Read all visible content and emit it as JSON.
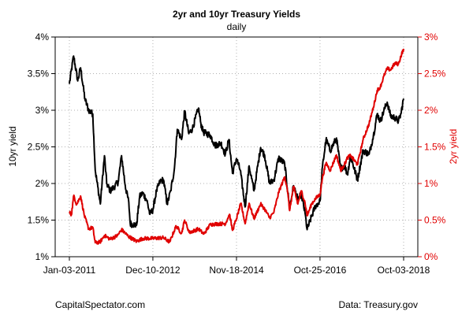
{
  "chart_data": {
    "type": "line",
    "title": "2yr and 10yr Treasury Yields",
    "subtitle": "daily",
    "x_tick_labels": [
      "Jan-03-2011",
      "Dec-10-2012",
      "Nov-18-2014",
      "Oct-25-2016",
      "Oct-03-2018"
    ],
    "x_tick_dates": [
      "2011-01-03",
      "2012-12-10",
      "2014-11-18",
      "2016-10-25",
      "2018-10-03"
    ],
    "xlim": [
      "2011-01-03",
      "2018-10-03"
    ],
    "ylabel_left": "10yr yield",
    "ylabel_right": "2yr yield",
    "ylim_left": [
      1,
      4
    ],
    "ylim_right": [
      0,
      3
    ],
    "y_ticks_left": [
      "1%",
      "1.5%",
      "2%",
      "2.5%",
      "3%",
      "3.5%",
      "4%"
    ],
    "y_ticks_right": [
      "0%",
      "0.5%",
      "1%",
      "1.5%",
      "2%",
      "2.5%",
      "3%"
    ],
    "grid": true,
    "series": [
      {
        "name": "10yr yield",
        "axis": "left",
        "color": "#000000",
        "points": [
          [
            "2011-01-03",
            3.36
          ],
          [
            "2011-02-08",
            3.74
          ],
          [
            "2011-03-15",
            3.4
          ],
          [
            "2011-04-08",
            3.58
          ],
          [
            "2011-05-15",
            3.15
          ],
          [
            "2011-06-15",
            3.0
          ],
          [
            "2011-07-20",
            2.95
          ],
          [
            "2011-08-10",
            2.18
          ],
          [
            "2011-09-22",
            1.72
          ],
          [
            "2011-10-27",
            2.38
          ],
          [
            "2011-11-15",
            2.0
          ],
          [
            "2011-12-15",
            1.9
          ],
          [
            "2012-01-15",
            1.95
          ],
          [
            "2012-02-20",
            2.02
          ],
          [
            "2012-03-20",
            2.38
          ],
          [
            "2012-04-20",
            1.97
          ],
          [
            "2012-05-20",
            1.74
          ],
          [
            "2012-06-01",
            1.45
          ],
          [
            "2012-07-25",
            1.43
          ],
          [
            "2012-08-20",
            1.82
          ],
          [
            "2012-09-15",
            1.87
          ],
          [
            "2012-10-20",
            1.77
          ],
          [
            "2012-11-15",
            1.58
          ],
          [
            "2012-12-10",
            1.64
          ],
          [
            "2013-01-10",
            1.9
          ],
          [
            "2013-02-10",
            2.03
          ],
          [
            "2013-03-10",
            2.05
          ],
          [
            "2013-04-10",
            1.72
          ],
          [
            "2013-05-10",
            1.9
          ],
          [
            "2013-06-10",
            2.2
          ],
          [
            "2013-07-05",
            2.74
          ],
          [
            "2013-08-10",
            2.6
          ],
          [
            "2013-09-05",
            2.99
          ],
          [
            "2013-10-10",
            2.68
          ],
          [
            "2013-11-10",
            2.75
          ],
          [
            "2013-12-31",
            3.03
          ],
          [
            "2014-01-20",
            2.82
          ],
          [
            "2014-02-10",
            2.7
          ],
          [
            "2014-04-10",
            2.66
          ],
          [
            "2014-05-20",
            2.52
          ],
          [
            "2014-07-10",
            2.55
          ],
          [
            "2014-08-15",
            2.4
          ],
          [
            "2014-09-15",
            2.6
          ],
          [
            "2014-10-15",
            2.14
          ],
          [
            "2014-11-18",
            2.34
          ],
          [
            "2014-12-20",
            2.18
          ],
          [
            "2015-01-30",
            1.68
          ],
          [
            "2015-03-05",
            2.24
          ],
          [
            "2015-04-15",
            1.9
          ],
          [
            "2015-06-10",
            2.49
          ],
          [
            "2015-07-15",
            2.38
          ],
          [
            "2015-08-25",
            2.0
          ],
          [
            "2015-10-01",
            2.05
          ],
          [
            "2015-11-10",
            2.35
          ],
          [
            "2015-12-31",
            2.27
          ],
          [
            "2016-02-11",
            1.66
          ],
          [
            "2016-03-15",
            1.97
          ],
          [
            "2016-04-20",
            1.78
          ],
          [
            "2016-05-20",
            1.85
          ],
          [
            "2016-06-20",
            1.6
          ],
          [
            "2016-07-08",
            1.37
          ],
          [
            "2016-08-15",
            1.55
          ],
          [
            "2016-09-15",
            1.69
          ],
          [
            "2016-10-25",
            1.76
          ],
          [
            "2016-11-15",
            2.23
          ],
          [
            "2016-12-15",
            2.6
          ],
          [
            "2017-01-20",
            2.45
          ],
          [
            "2017-03-13",
            2.62
          ],
          [
            "2017-04-18",
            2.2
          ],
          [
            "2017-05-20",
            2.25
          ],
          [
            "2017-06-14",
            2.12
          ],
          [
            "2017-07-10",
            2.38
          ],
          [
            "2017-09-07",
            2.05
          ],
          [
            "2017-10-25",
            2.45
          ],
          [
            "2017-12-15",
            2.4
          ],
          [
            "2018-01-20",
            2.65
          ],
          [
            "2018-02-21",
            2.95
          ],
          [
            "2018-03-20",
            2.85
          ],
          [
            "2018-04-25",
            3.02
          ],
          [
            "2018-05-17",
            3.11
          ],
          [
            "2018-06-15",
            2.92
          ],
          [
            "2018-07-20",
            2.9
          ],
          [
            "2018-08-20",
            2.85
          ],
          [
            "2018-09-10",
            2.95
          ],
          [
            "2018-10-03",
            3.16
          ]
        ]
      },
      {
        "name": "2yr yield",
        "axis": "right",
        "color": "#e00000",
        "points": [
          [
            "2011-01-03",
            0.61
          ],
          [
            "2011-01-20",
            0.57
          ],
          [
            "2011-02-10",
            0.84
          ],
          [
            "2011-03-05",
            0.71
          ],
          [
            "2011-04-08",
            0.83
          ],
          [
            "2011-05-10",
            0.56
          ],
          [
            "2011-06-15",
            0.38
          ],
          [
            "2011-07-20",
            0.4
          ],
          [
            "2011-08-10",
            0.19
          ],
          [
            "2011-09-20",
            0.2
          ],
          [
            "2011-10-27",
            0.29
          ],
          [
            "2011-12-15",
            0.24
          ],
          [
            "2012-02-15",
            0.29
          ],
          [
            "2012-03-20",
            0.37
          ],
          [
            "2012-05-15",
            0.28
          ],
          [
            "2012-07-25",
            0.21
          ],
          [
            "2012-09-15",
            0.25
          ],
          [
            "2012-12-10",
            0.25
          ],
          [
            "2013-03-10",
            0.26
          ],
          [
            "2013-05-01",
            0.2
          ],
          [
            "2013-06-25",
            0.42
          ],
          [
            "2013-08-10",
            0.32
          ],
          [
            "2013-09-05",
            0.5
          ],
          [
            "2013-10-15",
            0.33
          ],
          [
            "2013-12-31",
            0.38
          ],
          [
            "2014-02-15",
            0.31
          ],
          [
            "2014-04-10",
            0.44
          ],
          [
            "2014-06-15",
            0.45
          ],
          [
            "2014-08-15",
            0.45
          ],
          [
            "2014-09-20",
            0.58
          ],
          [
            "2014-10-15",
            0.36
          ],
          [
            "2014-11-18",
            0.52
          ],
          [
            "2014-12-25",
            0.73
          ],
          [
            "2015-01-30",
            0.45
          ],
          [
            "2015-03-05",
            0.73
          ],
          [
            "2015-04-15",
            0.52
          ],
          [
            "2015-06-10",
            0.72
          ],
          [
            "2015-07-15",
            0.65
          ],
          [
            "2015-08-25",
            0.53
          ],
          [
            "2015-10-01",
            0.61
          ],
          [
            "2015-11-10",
            0.88
          ],
          [
            "2015-12-31",
            1.09
          ],
          [
            "2016-01-20",
            0.95
          ],
          [
            "2016-02-11",
            0.63
          ],
          [
            "2016-03-15",
            0.96
          ],
          [
            "2016-04-20",
            0.72
          ],
          [
            "2016-05-20",
            0.9
          ],
          [
            "2016-06-20",
            0.74
          ],
          [
            "2016-07-08",
            0.56
          ],
          [
            "2016-08-15",
            0.72
          ],
          [
            "2016-09-15",
            0.79
          ],
          [
            "2016-10-25",
            0.85
          ],
          [
            "2016-11-15",
            1.08
          ],
          [
            "2016-12-15",
            1.28
          ],
          [
            "2017-01-20",
            1.18
          ],
          [
            "2017-03-13",
            1.39
          ],
          [
            "2017-04-18",
            1.18
          ],
          [
            "2017-05-20",
            1.26
          ],
          [
            "2017-06-14",
            1.35
          ],
          [
            "2017-07-10",
            1.38
          ],
          [
            "2017-09-07",
            1.26
          ],
          [
            "2017-10-25",
            1.6
          ],
          [
            "2017-12-15",
            1.82
          ],
          [
            "2018-01-20",
            2.04
          ],
          [
            "2018-02-21",
            2.27
          ],
          [
            "2018-03-20",
            2.32
          ],
          [
            "2018-04-25",
            2.49
          ],
          [
            "2018-05-17",
            2.57
          ],
          [
            "2018-06-15",
            2.55
          ],
          [
            "2018-07-20",
            2.64
          ],
          [
            "2018-08-20",
            2.63
          ],
          [
            "2018-09-10",
            2.74
          ],
          [
            "2018-10-03",
            2.84
          ]
        ]
      }
    ]
  },
  "footer": {
    "left": "CapitalSpectator.com",
    "right": "Data: Treasury.gov"
  }
}
